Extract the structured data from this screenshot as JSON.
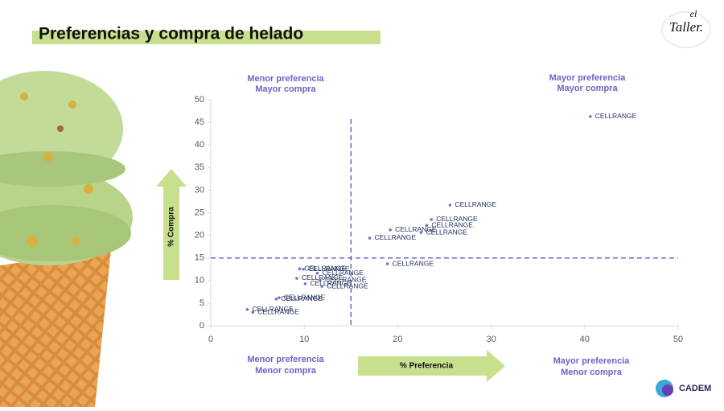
{
  "title": "Preferencias y compra de helado",
  "logos": {
    "top_script": "el",
    "top_name": "Taller.",
    "bottom": "CADEM"
  },
  "chart_data": {
    "type": "scatter",
    "x": [
      40.6,
      25.6,
      23.6,
      23.1,
      19.2,
      22.5,
      17.0,
      18.9,
      9.5,
      9.9,
      11.4,
      9.2,
      11.7,
      10.1,
      11.9,
      7.3,
      7.0,
      3.9,
      4.5
    ],
    "values": [
      46.3,
      26.7,
      23.5,
      22.2,
      21.2,
      20.6,
      19.4,
      13.7,
      12.6,
      12.5,
      11.6,
      10.5,
      10.1,
      9.3,
      8.7,
      6.2,
      5.9,
      3.6,
      3.0
    ],
    "labels": [
      "CELLRANGE",
      "CELLRANGE",
      "CELLRANGE",
      "CELLRANGE",
      "CELLRANGE",
      "CELLRANGE",
      "CELLRANGE",
      "CELLRANGE",
      "CELLRANGE",
      "CELLRANGE",
      "CELLRANGE",
      "CELLRANGE",
      "CELLRANGE",
      "CELLRANGE",
      "CELLRANGE",
      "CELLRANGE",
      "CELLRANGE",
      "CELLRANGE",
      "CELLRANGE"
    ],
    "color": "#7a73c8",
    "xlim": [
      0,
      50
    ],
    "ylim": [
      0,
      50
    ],
    "xticks": [
      0,
      10,
      20,
      30,
      40,
      50
    ],
    "yticks": [
      0,
      5,
      10,
      15,
      20,
      25,
      30,
      35,
      40,
      45,
      50
    ],
    "reference_lines": {
      "x": 15,
      "y": 15,
      "color": "#6e63c9"
    },
    "xlabel": "% Preferencia",
    "ylabel": "% Compra",
    "quadrant_labels": {
      "top_left": [
        "Menor preferencia",
        "Mayor compra"
      ],
      "top_right": [
        "Mayor preferencia",
        "Mayor compra"
      ],
      "bottom_left": [
        "Menor preferencia",
        "Menor compra"
      ],
      "bottom_right": [
        "Mayor preferencia",
        "Menor compra"
      ]
    }
  }
}
